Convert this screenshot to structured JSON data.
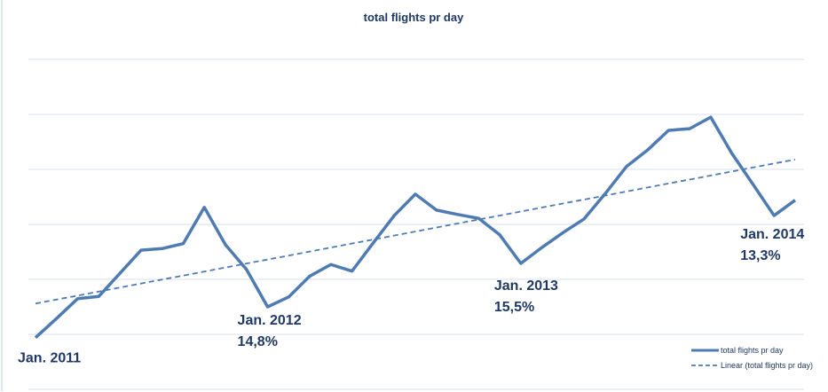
{
  "chart_data": {
    "type": "line",
    "title": "total flights pr day",
    "xlabel": "",
    "ylabel": "",
    "ylim": [
      -1,
      5
    ],
    "grid": true,
    "legend_placement": "bottom-right",
    "colors": {
      "series": "#4f7bb3",
      "trend": "#4f7bb3",
      "text": "#1f3864",
      "grid": "#d9e2ec"
    },
    "series": [
      {
        "name": "total flights pr day",
        "style": "solid",
        "values": [
          -0.06,
          0.29,
          0.65,
          0.69,
          1.11,
          1.53,
          1.56,
          1.65,
          2.31,
          1.63,
          1.18,
          0.5,
          0.68,
          1.06,
          1.27,
          1.15,
          1.66,
          2.16,
          2.55,
          2.26,
          2.18,
          2.11,
          1.81,
          1.29,
          1.58,
          1.85,
          2.1,
          2.56,
          3.05,
          3.35,
          3.71,
          3.74,
          3.95,
          3.29,
          2.73,
          2.16,
          2.44
        ]
      },
      {
        "name": "Linear (total flights pr day)",
        "style": "dashed",
        "type": "linear-trend",
        "values_start_end": [
          0.56,
          3.18
        ]
      }
    ],
    "annotations": [
      {
        "index": 0,
        "line1": "Jan. 2011",
        "line2": ""
      },
      {
        "index": 11,
        "line1": "Jan. 2012",
        "line2": "14,8%"
      },
      {
        "index": 23,
        "line1": "Jan. 2013",
        "line2": "15,5%"
      },
      {
        "index": 35,
        "line1": "Jan. 2014",
        "line2": "13,3%"
      }
    ]
  }
}
